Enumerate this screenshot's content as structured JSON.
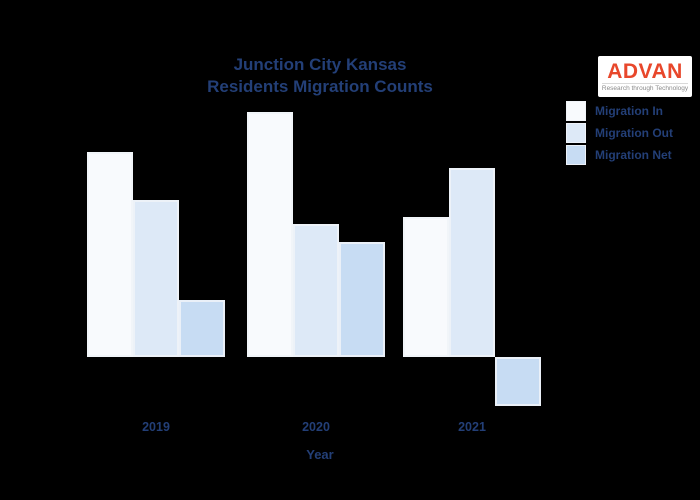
{
  "title": {
    "line1": "Junction City Kansas",
    "line2": "Residents Migration Counts"
  },
  "logo": {
    "name": "ADVAN",
    "tagline": "Research through Technology"
  },
  "legend": [
    {
      "label": "Migration In",
      "color": "#f8fafd"
    },
    {
      "label": "Migration Out",
      "color": "#dde9f7"
    },
    {
      "label": "Migration Net",
      "color": "#c7dcf3"
    }
  ],
  "xlabel": "Year",
  "colors": {
    "background": "#000000",
    "text": "#233f77",
    "logo_red": "#e8472b",
    "bar_in": "#f8fafd",
    "bar_out": "#dde9f7",
    "bar_net": "#c7dcf3"
  },
  "chart_data": {
    "type": "bar",
    "title": "Junction City Kansas Residents Migration Counts",
    "xlabel": "Year",
    "ylabel": "",
    "categories": [
      "2019",
      "2020",
      "2021"
    ],
    "series": [
      {
        "name": "Migration In",
        "color": "#f8fafd",
        "values": [
          205,
          245,
          140
        ]
      },
      {
        "name": "Migration Out",
        "color": "#dde9f7",
        "values": [
          157,
          133,
          189
        ]
      },
      {
        "name": "Migration Net",
        "color": "#c7dcf3",
        "values": [
          57,
          115,
          -49
        ]
      }
    ],
    "value_units": "relative (no visible y-axis scale)",
    "ylim": [
      -60,
      260
    ],
    "grid": false,
    "y_axis_labels_visible": false,
    "legend_position": "upper right",
    "negative_bars": [
      {
        "series": "Migration Net",
        "category": "2021"
      }
    ]
  }
}
